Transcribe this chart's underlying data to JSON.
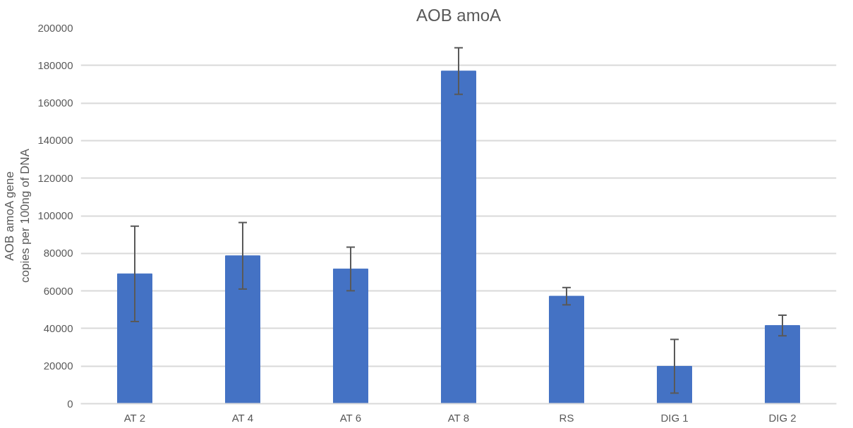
{
  "chart_data": {
    "type": "bar",
    "title": "AOB amoA",
    "ylabel": "AOB amoA gene\ncopies per 100ng of DNA",
    "categories": [
      "AT 2",
      "AT 4",
      "AT 6",
      "AT 8",
      "RS",
      "DIG 1",
      "DIG 2"
    ],
    "values": [
      69100,
      78700,
      71700,
      177000,
      57200,
      19900,
      41600
    ],
    "errors": [
      25400,
      17700,
      11600,
      12400,
      4600,
      14300,
      5500
    ],
    "color": "#4472c4",
    "ylim": [
      0,
      200000
    ],
    "yticks": [
      0,
      20000,
      40000,
      60000,
      80000,
      100000,
      120000,
      140000,
      160000,
      180000,
      200000
    ],
    "grid": "y"
  }
}
